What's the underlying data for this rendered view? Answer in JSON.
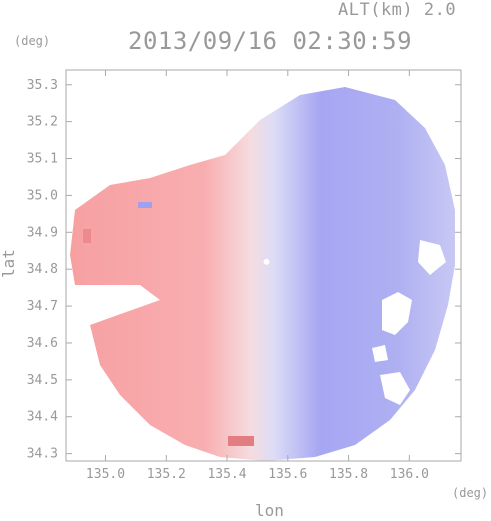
{
  "altitude_label": "ALT(km) 2.0",
  "timestamp": "2013/09/16 02:30:59",
  "y_unit": "(deg)",
  "x_unit": "(deg)",
  "x_axis_label": "lon",
  "y_axis_label": "lat",
  "colors": {
    "frame": "#aaaaaa",
    "toward": "#8c8cf5",
    "away": "#f58c8c",
    "zero": "#f4f2f6"
  },
  "map": {
    "lon_range": [
      134.87,
      136.17
    ],
    "lat_range": [
      34.28,
      35.34
    ],
    "x_ticks": [
      {
        "value": 135.0,
        "label": "135.0"
      },
      {
        "value": 135.2,
        "label": "135.2"
      },
      {
        "value": 135.4,
        "label": "135.4"
      },
      {
        "value": 135.6,
        "label": "135.6"
      },
      {
        "value": 135.8,
        "label": "135.8"
      },
      {
        "value": 136.0,
        "label": "136.0"
      }
    ],
    "y_ticks": [
      {
        "value": 34.3,
        "label": "34.3"
      },
      {
        "value": 34.4,
        "label": "34.4"
      },
      {
        "value": 34.5,
        "label": "34.5"
      },
      {
        "value": 34.6,
        "label": "34.6"
      },
      {
        "value": 34.7,
        "label": "34.7"
      },
      {
        "value": 34.8,
        "label": "34.8"
      },
      {
        "value": 34.9,
        "label": "34.9"
      },
      {
        "value": 35.0,
        "label": "35.0"
      },
      {
        "value": 35.1,
        "label": "35.1"
      },
      {
        "value": 35.2,
        "label": "35.2"
      },
      {
        "value": 35.3,
        "label": "35.3"
      }
    ],
    "radar_center": {
      "lon": 135.53,
      "lat": 34.82
    },
    "radar_range_deg": 0.58
  }
}
